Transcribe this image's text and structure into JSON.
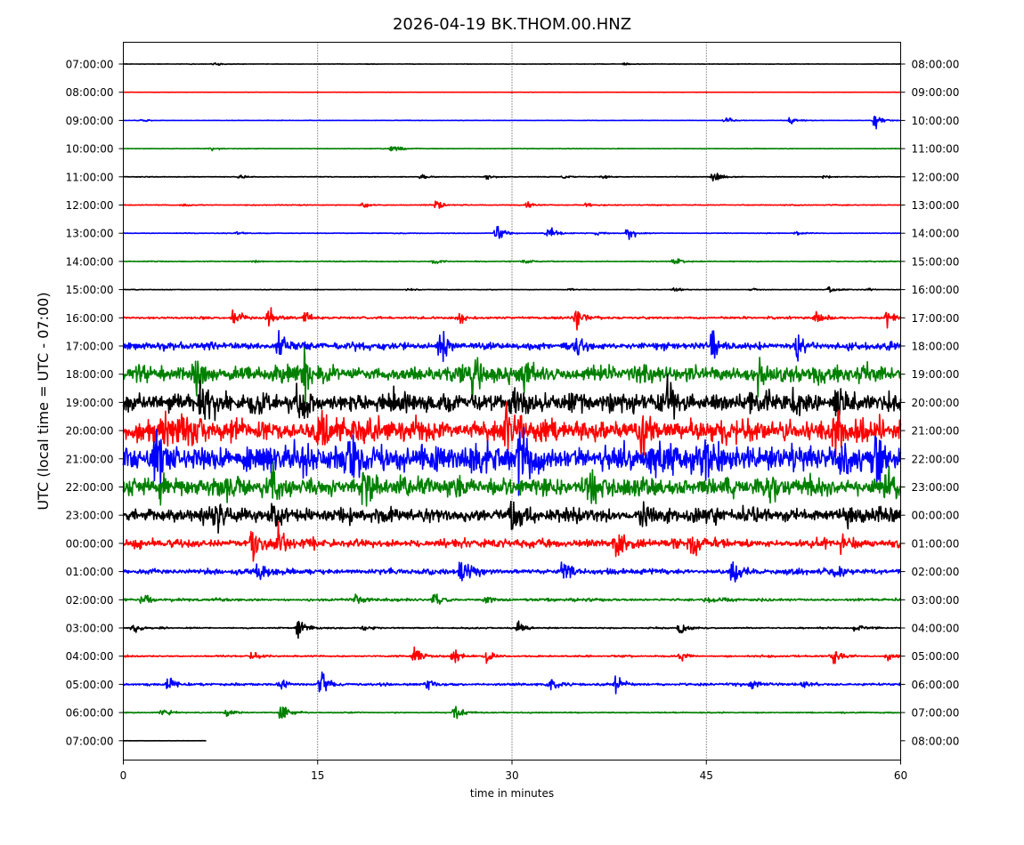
{
  "chart_data": {
    "type": "line",
    "title": "2026-04-19 BK.THOM.00.HNZ",
    "xlabel": "time in minutes",
    "ylabel": "UTC (local time = UTC - 07:00)",
    "xlim": [
      0,
      60
    ],
    "xticks": [
      "0",
      "15",
      "30",
      "45",
      "60"
    ],
    "xtick_values": [
      0,
      15,
      30,
      45,
      60
    ],
    "grid": "vertical dotted lines at 15, 30, 45 minutes",
    "colors": [
      "#000000",
      "#ff0000",
      "#0000ff",
      "#008000"
    ],
    "left_labels": [
      "07:00:00",
      "08:00:00",
      "09:00:00",
      "10:00:00",
      "11:00:00",
      "12:00:00",
      "13:00:00",
      "14:00:00",
      "15:00:00",
      "16:00:00",
      "17:00:00",
      "18:00:00",
      "19:00:00",
      "20:00:00",
      "21:00:00",
      "22:00:00",
      "23:00:00",
      "00:00:00",
      "01:00:00",
      "02:00:00",
      "03:00:00",
      "04:00:00",
      "05:00:00",
      "06:00:00",
      "07:00:00"
    ],
    "right_labels": [
      "08:00:00",
      "09:00:00",
      "10:00:00",
      "11:00:00",
      "12:00:00",
      "13:00:00",
      "14:00:00",
      "15:00:00",
      "16:00:00",
      "17:00:00",
      "18:00:00",
      "19:00:00",
      "20:00:00",
      "21:00:00",
      "22:00:00",
      "23:00:00",
      "00:00:00",
      "01:00:00",
      "02:00:00",
      "03:00:00",
      "04:00:00",
      "05:00:00",
      "06:00:00",
      "07:00:00",
      "08:00:00"
    ],
    "series": [
      {
        "noise": 0.15,
        "end": 60,
        "events": [
          [
            7.0,
            1.2
          ],
          [
            38.7,
            1.0
          ]
        ]
      },
      {
        "noise": 0.08,
        "end": 60,
        "events": []
      },
      {
        "noise": 0.15,
        "end": 60,
        "events": [
          [
            1.5,
            1.5
          ],
          [
            46.5,
            2.5
          ],
          [
            51.5,
            3.5
          ],
          [
            58.0,
            7.0
          ]
        ]
      },
      {
        "noise": 0.2,
        "end": 60,
        "events": [
          [
            6.8,
            1.5
          ],
          [
            20.8,
            6.0
          ]
        ]
      },
      {
        "noise": 0.25,
        "end": 60,
        "events": [
          [
            9.0,
            2.0
          ],
          [
            23.0,
            2.5
          ],
          [
            28.0,
            1.5
          ],
          [
            34.0,
            1.5
          ],
          [
            37.0,
            2.0
          ],
          [
            45.5,
            7.0
          ],
          [
            54.0,
            1.5
          ]
        ]
      },
      {
        "noise": 0.3,
        "end": 60,
        "events": [
          [
            4.5,
            1.5
          ],
          [
            18.5,
            3.0
          ],
          [
            24.2,
            4.0
          ],
          [
            31.2,
            3.0
          ],
          [
            35.8,
            2.0
          ]
        ]
      },
      {
        "noise": 0.25,
        "end": 60,
        "events": [
          [
            8.8,
            1.0
          ],
          [
            28.8,
            7.0
          ],
          [
            32.8,
            7.0
          ],
          [
            36.5,
            2.0
          ],
          [
            39.0,
            7.0
          ],
          [
            52.0,
            1.5
          ]
        ]
      },
      {
        "noise": 0.3,
        "end": 60,
        "events": [
          [
            10.0,
            1.5
          ],
          [
            24.0,
            3.0
          ],
          [
            31.0,
            1.5
          ],
          [
            42.5,
            4.0
          ]
        ]
      },
      {
        "noise": 0.2,
        "end": 60,
        "events": [
          [
            22.0,
            1.0
          ],
          [
            34.5,
            1.0
          ],
          [
            42.5,
            1.5
          ],
          [
            48.5,
            1.2
          ],
          [
            54.5,
            2.0
          ],
          [
            57.5,
            1.5
          ]
        ]
      },
      {
        "noise": 0.8,
        "end": 60,
        "events": [
          [
            8.5,
            7.0
          ],
          [
            11.2,
            8.0
          ],
          [
            14.0,
            5.0
          ],
          [
            26.0,
            4.0
          ],
          [
            35.0,
            9.0
          ],
          [
            53.5,
            7.0
          ],
          [
            59.0,
            8.0
          ]
        ]
      },
      {
        "noise": 2.5,
        "end": 60,
        "events": [
          [
            12.0,
            12.0
          ],
          [
            24.5,
            16.0
          ],
          [
            35.0,
            14.0
          ],
          [
            45.5,
            14.0
          ],
          [
            52.0,
            12.0
          ]
        ]
      },
      {
        "noise": 6.0,
        "end": 60,
        "events": [
          [
            5.5,
            14.0
          ],
          [
            14.0,
            20.0
          ],
          [
            27.0,
            16.0
          ],
          [
            31.0,
            14.0
          ],
          [
            49.0,
            12.0
          ]
        ]
      },
      {
        "noise": 7.0,
        "end": 60,
        "events": [
          [
            6.0,
            14.0
          ],
          [
            13.5,
            18.0
          ],
          [
            30.0,
            18.0
          ],
          [
            42.0,
            16.0
          ],
          [
            55.0,
            14.0
          ]
        ]
      },
      {
        "noise": 8.0,
        "end": 60,
        "events": [
          [
            3.0,
            18.0
          ],
          [
            15.0,
            20.0
          ],
          [
            29.5,
            22.0
          ],
          [
            40.0,
            18.0
          ],
          [
            55.0,
            16.0
          ]
        ]
      },
      {
        "noise": 10.0,
        "end": 60,
        "events": [
          [
            2.5,
            20.0
          ],
          [
            17.5,
            24.0
          ],
          [
            30.5,
            24.0
          ],
          [
            45.0,
            22.0
          ],
          [
            58.0,
            20.0
          ]
        ]
      },
      {
        "noise": 7.0,
        "end": 60,
        "events": [
          [
            3.0,
            14.0
          ],
          [
            11.5,
            18.0
          ],
          [
            18.5,
            16.0
          ],
          [
            36.0,
            12.0
          ],
          [
            59.0,
            14.0
          ]
        ]
      },
      {
        "noise": 5.0,
        "end": 60,
        "events": [
          [
            7.0,
            12.0
          ],
          [
            11.5,
            14.0
          ],
          [
            30.0,
            12.0
          ],
          [
            40.0,
            14.0
          ],
          [
            56.0,
            12.0
          ]
        ]
      },
      {
        "noise": 3.0,
        "end": 60,
        "events": [
          [
            10.0,
            12.0
          ],
          [
            12.0,
            14.0
          ],
          [
            38.0,
            10.0
          ],
          [
            44.0,
            12.0
          ],
          [
            55.5,
            8.0
          ]
        ]
      },
      {
        "noise": 2.0,
        "end": 60,
        "events": [
          [
            10.5,
            10.0
          ],
          [
            26.0,
            12.0
          ],
          [
            34.0,
            10.0
          ],
          [
            47.0,
            8.0
          ],
          [
            55.0,
            6.0
          ]
        ]
      },
      {
        "noise": 1.0,
        "end": 60,
        "events": [
          [
            1.5,
            6.0
          ],
          [
            18.0,
            5.0
          ],
          [
            24.0,
            6.0
          ],
          [
            28.0,
            4.0
          ],
          [
            45.0,
            3.0
          ]
        ]
      },
      {
        "noise": 0.5,
        "end": 60,
        "events": [
          [
            0.8,
            4.0
          ],
          [
            13.5,
            9.0
          ],
          [
            18.5,
            3.0
          ],
          [
            30.5,
            5.0
          ],
          [
            43.0,
            6.0
          ],
          [
            56.5,
            4.0
          ]
        ]
      },
      {
        "noise": 0.6,
        "end": 60,
        "events": [
          [
            10.0,
            4.0
          ],
          [
            22.5,
            9.0
          ],
          [
            25.5,
            6.0
          ],
          [
            28.0,
            4.0
          ],
          [
            43.0,
            4.0
          ],
          [
            54.7,
            12.0
          ],
          [
            59.0,
            4.0
          ]
        ]
      },
      {
        "noise": 0.9,
        "end": 60,
        "events": [
          [
            3.5,
            6.0
          ],
          [
            12.0,
            4.0
          ],
          [
            15.2,
            12.0
          ],
          [
            23.5,
            4.0
          ],
          [
            33.0,
            5.0
          ],
          [
            38.0,
            8.0
          ],
          [
            48.5,
            4.0
          ],
          [
            52.5,
            4.0
          ]
        ]
      },
      {
        "noise": 0.4,
        "end": 60,
        "events": [
          [
            3.0,
            3.0
          ],
          [
            8.0,
            5.0
          ],
          [
            12.2,
            8.0
          ],
          [
            25.6,
            7.0
          ]
        ]
      },
      {
        "noise": 0.1,
        "end": 6.4,
        "events": []
      }
    ]
  }
}
